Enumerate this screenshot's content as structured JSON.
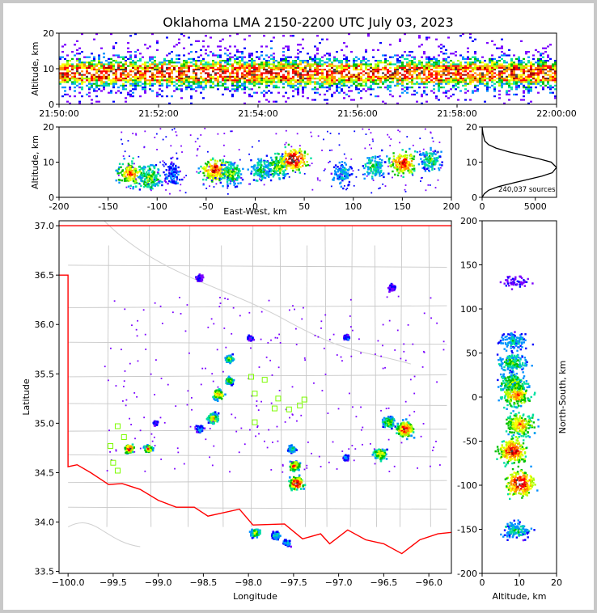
{
  "chart_data": [
    {
      "type": "heatmap",
      "panel": "altitude-time",
      "ylabel": "Altitude, km",
      "xlim": [
        "21:50:00",
        "22:00:00"
      ],
      "ylim": [
        0,
        20
      ],
      "xticks": [
        "21:50:00",
        "21:52:00",
        "21:54:00",
        "21:56:00",
        "21:58:00",
        "22:00:00"
      ],
      "yticks": [
        0,
        10,
        20
      ],
      "density_band_km": [
        2,
        16
      ],
      "peak_altitude_km": 9
    },
    {
      "type": "heatmap",
      "panel": "east-west-altitude",
      "xlabel": "East-West, km",
      "ylabel": "Altitude, km",
      "xlim": [
        -200,
        200
      ],
      "ylim": [
        0,
        20
      ],
      "xticks": [
        -200,
        -150,
        -100,
        -50,
        0,
        50,
        100,
        150,
        200
      ],
      "yticks": [
        0,
        10,
        20
      ],
      "clusters": [
        {
          "x": -128,
          "alt": 7,
          "intensity": 0.8
        },
        {
          "x": -108,
          "alt": 6,
          "intensity": 0.6
        },
        {
          "x": -85,
          "alt": 7,
          "intensity": 0.3
        },
        {
          "x": -42,
          "alt": 8,
          "intensity": 0.9
        },
        {
          "x": -25,
          "alt": 7,
          "intensity": 0.6
        },
        {
          "x": 5,
          "alt": 8,
          "intensity": 0.5
        },
        {
          "x": 22,
          "alt": 9,
          "intensity": 0.6
        },
        {
          "x": 38,
          "alt": 11,
          "intensity": 1.0
        },
        {
          "x": 88,
          "alt": 7,
          "intensity": 0.4
        },
        {
          "x": 120,
          "alt": 9,
          "intensity": 0.5
        },
        {
          "x": 150,
          "alt": 10,
          "intensity": 0.9
        },
        {
          "x": 178,
          "alt": 11,
          "intensity": 0.5
        }
      ]
    },
    {
      "type": "line",
      "panel": "altitude-histogram",
      "xlim": [
        0,
        7000
      ],
      "ylim": [
        0,
        20
      ],
      "xticks": [
        0,
        5000
      ],
      "yticks": [
        0,
        10,
        20
      ],
      "annotation": "240,037 sources",
      "x": [
        0,
        200,
        600,
        1500,
        2800,
        4200,
        5600,
        6600,
        7000,
        6500,
        5300,
        3800,
        2400,
        1300,
        600,
        250,
        80,
        0
      ],
      "y": [
        0,
        1,
        2,
        3,
        4,
        5,
        6,
        7,
        8.5,
        10,
        11,
        12,
        13,
        14,
        15,
        16,
        18,
        20
      ]
    },
    {
      "type": "scatter",
      "panel": "plan-view",
      "xlabel": "Longitude",
      "ylabel": "Latitude",
      "xlim": [
        -100.1,
        -95.75
      ],
      "ylim": [
        33.48,
        37.05
      ],
      "xticks": [
        -100.0,
        -99.5,
        -99.0,
        -98.5,
        -98.0,
        -97.5,
        -97.0,
        -96.5,
        -96.0
      ],
      "yticks": [
        33.5,
        34.0,
        34.5,
        35.0,
        35.5,
        36.0,
        36.5,
        37.0
      ],
      "xtick_labels": [
        "−100.0",
        "−99.5",
        "−99.0",
        "−98.5",
        "−98.0",
        "−97.5",
        "−97.0",
        "−96.5",
        "−96.0"
      ],
      "cells": [
        {
          "lon": -98.55,
          "lat": 36.48,
          "size": 0.6,
          "intensity": 0.15
        },
        {
          "lon": -96.42,
          "lat": 36.38,
          "size": 0.6,
          "intensity": 0.1
        },
        {
          "lon": -97.99,
          "lat": 35.87,
          "size": 0.5,
          "intensity": 0.2
        },
        {
          "lon": -96.92,
          "lat": 35.88,
          "size": 0.5,
          "intensity": 0.25
        },
        {
          "lon": -98.22,
          "lat": 35.66,
          "size": 0.7,
          "intensity": 0.6
        },
        {
          "lon": -98.22,
          "lat": 35.44,
          "size": 0.7,
          "intensity": 0.6
        },
        {
          "lon": -98.34,
          "lat": 35.3,
          "size": 0.9,
          "intensity": 0.8
        },
        {
          "lon": -98.4,
          "lat": 35.06,
          "size": 0.9,
          "intensity": 0.7
        },
        {
          "lon": -98.55,
          "lat": 34.95,
          "size": 0.6,
          "intensity": 0.4
        },
        {
          "lon": -99.33,
          "lat": 34.75,
          "size": 0.8,
          "intensity": 0.9
        },
        {
          "lon": -99.12,
          "lat": 34.75,
          "size": 0.7,
          "intensity": 0.75
        },
        {
          "lon": -99.04,
          "lat": 35.01,
          "size": 0.4,
          "intensity": 0.2
        },
        {
          "lon": -96.45,
          "lat": 35.02,
          "size": 1.0,
          "intensity": 0.6
        },
        {
          "lon": -96.27,
          "lat": 34.95,
          "size": 1.3,
          "intensity": 0.95
        },
        {
          "lon": -96.55,
          "lat": 34.7,
          "size": 1.1,
          "intensity": 0.7
        },
        {
          "lon": -97.53,
          "lat": 34.75,
          "size": 0.6,
          "intensity": 0.5
        },
        {
          "lon": -97.5,
          "lat": 34.58,
          "size": 0.9,
          "intensity": 0.85
        },
        {
          "lon": -97.48,
          "lat": 34.4,
          "size": 1.1,
          "intensity": 1.0
        },
        {
          "lon": -96.93,
          "lat": 34.66,
          "size": 0.5,
          "intensity": 0.3
        },
        {
          "lon": -97.93,
          "lat": 33.9,
          "size": 0.8,
          "intensity": 0.6
        },
        {
          "lon": -97.7,
          "lat": 33.87,
          "size": 0.7,
          "intensity": 0.45
        },
        {
          "lon": -97.58,
          "lat": 33.8,
          "size": 0.6,
          "intensity": 0.35
        }
      ],
      "stations": [
        {
          "lon": -99.45,
          "lat": 34.97
        },
        {
          "lon": -99.38,
          "lat": 34.86
        },
        {
          "lon": -99.53,
          "lat": 34.77
        },
        {
          "lon": -99.5,
          "lat": 34.6
        },
        {
          "lon": -99.45,
          "lat": 34.52
        },
        {
          "lon": -97.93,
          "lat": 35.01
        },
        {
          "lon": -97.82,
          "lat": 35.44
        },
        {
          "lon": -97.67,
          "lat": 35.25
        },
        {
          "lon": -97.55,
          "lat": 35.14
        },
        {
          "lon": -97.43,
          "lat": 35.18
        },
        {
          "lon": -97.38,
          "lat": 35.24
        },
        {
          "lon": -97.93,
          "lat": 35.3
        },
        {
          "lon": -97.97,
          "lat": 35.47
        },
        {
          "lon": -97.71,
          "lat": 35.15
        }
      ]
    },
    {
      "type": "heatmap",
      "panel": "altitude-north-south",
      "xlabel": "Altitude, km",
      "ylabel": "North-South, km",
      "xlim": [
        0,
        20
      ],
      "ylim": [
        -200,
        200
      ],
      "xticks": [
        0,
        10,
        20
      ],
      "yticks": [
        -200,
        -150,
        -100,
        -50,
        0,
        50,
        100,
        150,
        200
      ],
      "clusters": [
        {
          "ns": 132,
          "alt": 9,
          "intensity": 0.1
        },
        {
          "ns": 65,
          "alt": 8,
          "intensity": 0.4
        },
        {
          "ns": 40,
          "alt": 8,
          "intensity": 0.55
        },
        {
          "ns": 18,
          "alt": 8,
          "intensity": 0.6
        },
        {
          "ns": 3,
          "alt": 9,
          "intensity": 0.8
        },
        {
          "ns": -30,
          "alt": 10,
          "intensity": 0.8
        },
        {
          "ns": -60,
          "alt": 8,
          "intensity": 0.95
        },
        {
          "ns": -97,
          "alt": 10,
          "intensity": 1.0
        },
        {
          "ns": -150,
          "alt": 9,
          "intensity": 0.45
        }
      ]
    }
  ],
  "title": "Oklahoma LMA 2150-2200 UTC July 03, 2023",
  "colors": {
    "state_border": "#ff0000",
    "county_lines": "#c0c0c0",
    "station_marker": "#7cfc00",
    "frame": "#c8c8c8"
  }
}
